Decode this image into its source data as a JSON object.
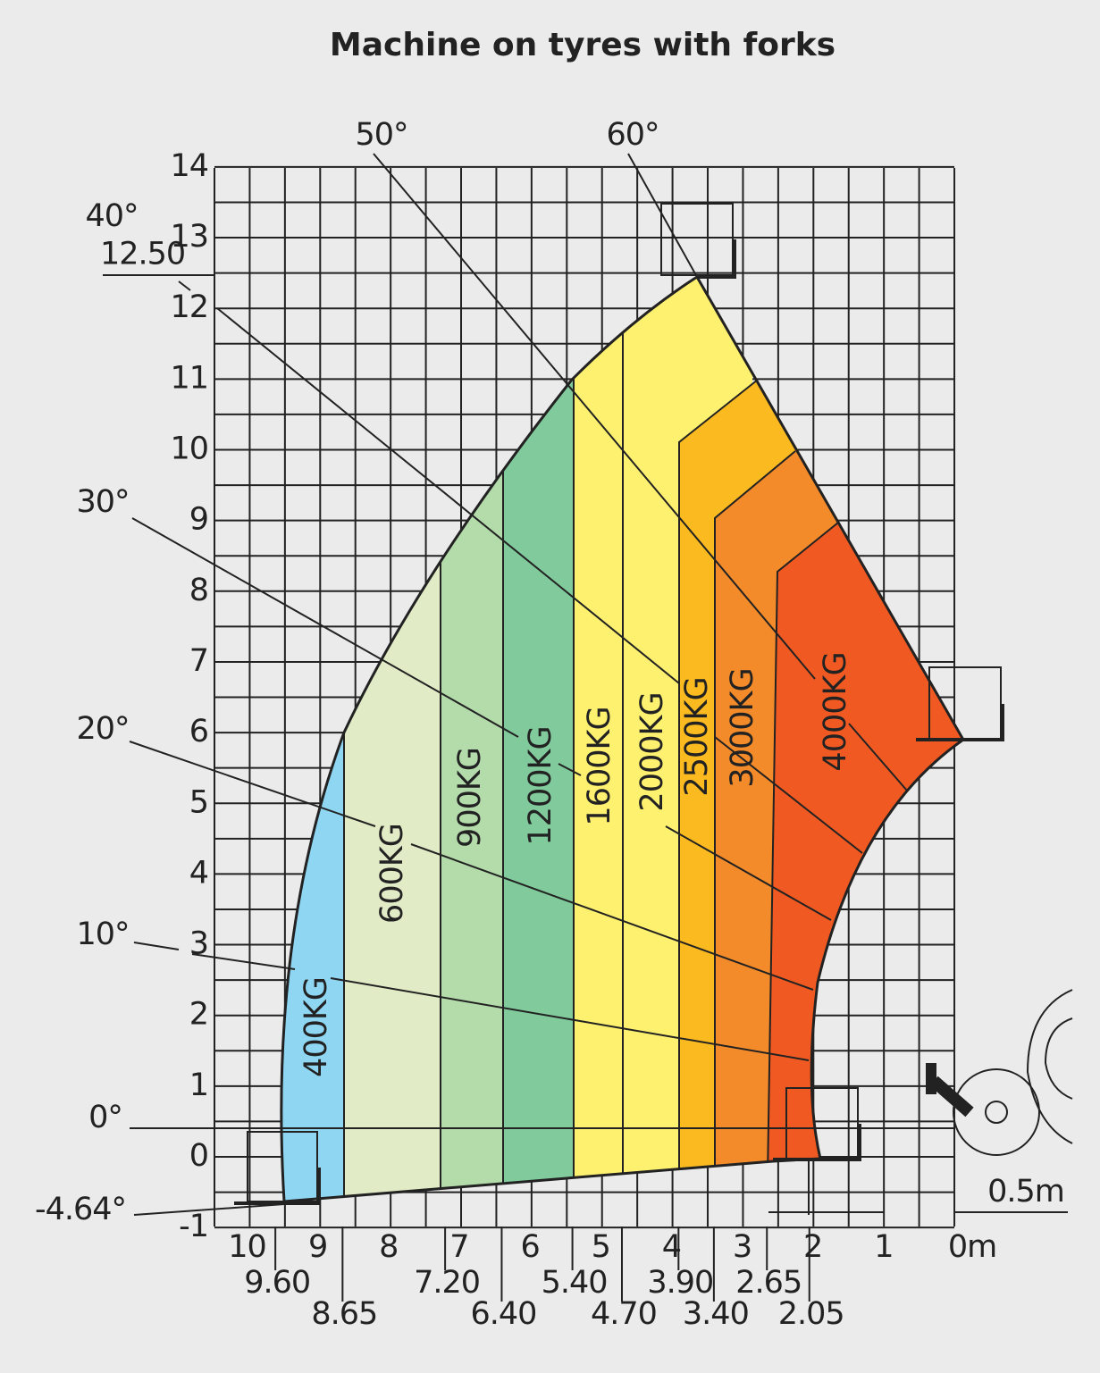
{
  "header": {
    "title": "Machine on tyres with forks"
  },
  "height_axis": {
    "ticks": [
      -1,
      0,
      1,
      2,
      3,
      4,
      5,
      6,
      7,
      8,
      9,
      10,
      11,
      12,
      13,
      14
    ],
    "max_height": {
      "value": 12.5,
      "label": "12.50"
    }
  },
  "reach_axis": {
    "ticks": [
      10,
      9,
      8,
      7,
      6,
      5,
      4,
      3,
      2,
      1,
      {
        "value": 0,
        "label": "0m"
      }
    ],
    "zone_limits": [
      {
        "value": 9.6,
        "label": "9.60"
      },
      {
        "value": 8.65,
        "label": "8.65"
      },
      {
        "value": 7.2,
        "label": "7.20"
      },
      {
        "value": 6.4,
        "label": "6.40"
      },
      {
        "value": 5.4,
        "label": "5.40"
      },
      {
        "value": 4.7,
        "label": "4.70"
      },
      {
        "value": 3.9,
        "label": "3.90"
      },
      {
        "value": 3.4,
        "label": "3.40"
      },
      {
        "value": 2.65,
        "label": "2.65"
      },
      {
        "value": 2.05,
        "label": "2.05"
      }
    ]
  },
  "angles": [
    "60°",
    "50°",
    "40°",
    "30°",
    "20°",
    "10°",
    "0°",
    "-4.64°"
  ],
  "zones": [
    "400KG",
    "600KG",
    "900KG",
    "1200KG",
    "1600KG",
    "2000KG",
    "2500KG",
    "3000KG",
    "4000KG"
  ],
  "scale_note": "0.5m"
}
